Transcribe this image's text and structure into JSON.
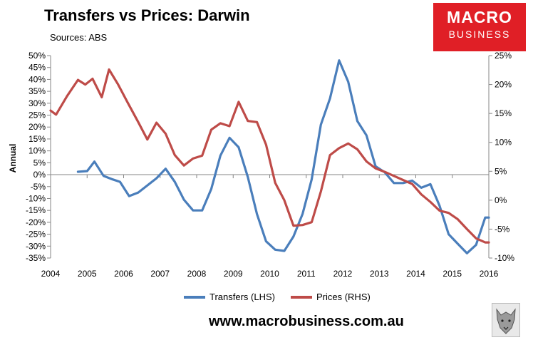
{
  "header": {
    "title": "Transfers vs Prices: Darwin",
    "subtitle": "Sources: ABS"
  },
  "logo": {
    "line1": "MACRO",
    "line2": "BUSINESS"
  },
  "footer": {
    "url": "www.macrobusiness.com.au"
  },
  "colors": {
    "transfers": "#4a7ebb",
    "prices": "#be4b48",
    "axis": "#868686",
    "logo_bg": "#e01f26"
  },
  "chart_data": {
    "type": "line",
    "title": "Transfers vs Prices: Darwin",
    "ylabel": "Annual",
    "xlabel": "",
    "x_ticks": [
      "2004",
      "2005",
      "2006",
      "2007",
      "2008",
      "2009",
      "2010",
      "2011",
      "2012",
      "2013",
      "2014",
      "2015",
      "2016"
    ],
    "xlim": [
      2004,
      2016
    ],
    "y_left": {
      "lim": [
        -35,
        50
      ],
      "ticks": [
        "50%",
        "45%",
        "40%",
        "35%",
        "30%",
        "25%",
        "20%",
        "15%",
        "10%",
        "5%",
        "0%",
        "-5%",
        "-10%",
        "-15%",
        "-20%",
        "-25%",
        "-30%",
        "-35%"
      ]
    },
    "y_right": {
      "lim": [
        -10,
        25
      ],
      "ticks": [
        "25%",
        "20%",
        "15%",
        "10%",
        "5%",
        "0%",
        "-5%",
        "-10%"
      ]
    },
    "legend_position": "bottom",
    "grid": false,
    "series": [
      {
        "name": "Transfers (LHS)",
        "axis": "left",
        "x": [
          2004.75,
          2005.0,
          2005.2,
          2005.45,
          2005.7,
          2005.9,
          2006.15,
          2006.4,
          2006.65,
          2006.9,
          2007.15,
          2007.4,
          2007.65,
          2007.9,
          2008.15,
          2008.4,
          2008.65,
          2008.9,
          2009.15,
          2009.4,
          2009.65,
          2009.9,
          2010.15,
          2010.4,
          2010.65,
          2010.9,
          2011.15,
          2011.4,
          2011.65,
          2011.9,
          2012.15,
          2012.4,
          2012.65,
          2012.9,
          2013.15,
          2013.4,
          2013.65,
          2013.9,
          2014.15,
          2014.4,
          2014.65,
          2014.9,
          2015.15,
          2015.4,
          2015.65,
          2015.9,
          2016.0
        ],
        "y": [
          1.2,
          1.5,
          5.5,
          -0.5,
          -2,
          -3,
          -9,
          -7.5,
          -4.5,
          -1.5,
          2.5,
          -3,
          -10.5,
          -15,
          -15,
          -6,
          8,
          15.5,
          11.5,
          -1,
          -16.5,
          -28,
          -31.5,
          -32,
          -26,
          -16.5,
          -2,
          21,
          32,
          48,
          39,
          22.5,
          16.5,
          3.5,
          1,
          -3.5,
          -3.5,
          -2.5,
          -5.5,
          -4,
          -13,
          -25,
          -29,
          -33,
          -29.5,
          -18,
          -18
        ]
      },
      {
        "name": "Prices (RHS)",
        "axis": "right",
        "x": [
          2004.0,
          2004.15,
          2004.45,
          2004.75,
          2004.95,
          2005.15,
          2005.4,
          2005.6,
          2005.85,
          2006.1,
          2006.4,
          2006.65,
          2006.9,
          2007.15,
          2007.4,
          2007.65,
          2007.9,
          2008.15,
          2008.4,
          2008.65,
          2008.9,
          2009.15,
          2009.4,
          2009.65,
          2009.9,
          2010.15,
          2010.4,
          2010.65,
          2010.9,
          2011.15,
          2011.4,
          2011.65,
          2011.9,
          2012.15,
          2012.4,
          2012.65,
          2012.9,
          2013.15,
          2013.4,
          2013.65,
          2013.9,
          2014.15,
          2014.4,
          2014.65,
          2014.9,
          2015.15,
          2015.4,
          2015.65,
          2015.9,
          2016.0
        ],
        "y": [
          15.5,
          14.8,
          18,
          20.8,
          20,
          21,
          17.8,
          22.6,
          20,
          17,
          13.5,
          10.5,
          13.4,
          11.5,
          7.8,
          6,
          7.2,
          7.7,
          12.2,
          13.3,
          12.8,
          17,
          13.7,
          13.5,
          9.6,
          3,
          0,
          -4.4,
          -4.3,
          -3.8,
          1.5,
          7.8,
          9,
          9.8,
          8.8,
          6.7,
          5.5,
          4.9,
          4.2,
          3.5,
          2.8,
          1,
          -0.3,
          -1.8,
          -2.2,
          -3.3,
          -5,
          -6.6,
          -7.3,
          -7.3
        ]
      }
    ]
  }
}
